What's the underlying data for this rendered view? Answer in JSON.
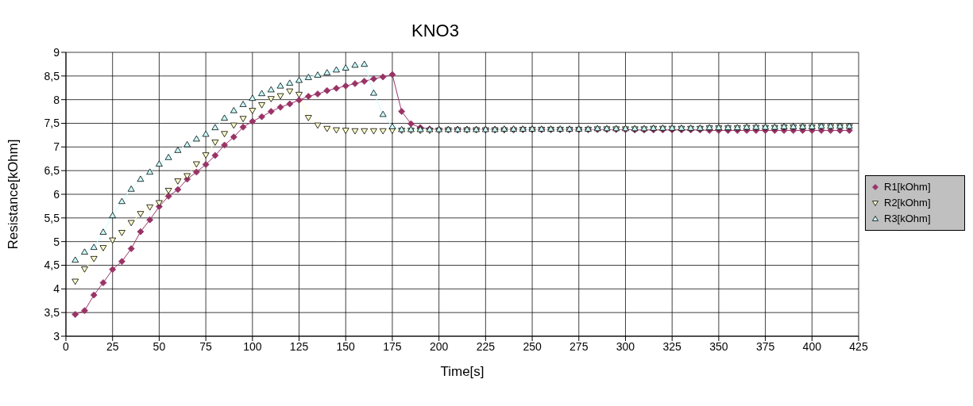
{
  "chart_data": {
    "type": "line",
    "title": "KNO3",
    "xlabel": "Time[s]",
    "ylabel": "Resistance[kOhm]",
    "x": [
      5,
      10,
      15,
      20,
      25,
      30,
      35,
      40,
      45,
      50,
      55,
      60,
      65,
      70,
      75,
      80,
      85,
      90,
      95,
      100,
      105,
      110,
      115,
      120,
      125,
      130,
      135,
      140,
      145,
      150,
      155,
      160,
      165,
      170,
      175,
      180,
      185,
      190,
      195,
      200,
      205,
      210,
      215,
      220,
      225,
      230,
      235,
      240,
      245,
      250,
      255,
      260,
      265,
      270,
      275,
      280,
      285,
      290,
      295,
      300,
      305,
      310,
      315,
      320,
      325,
      330,
      335,
      340,
      345,
      350,
      355,
      360,
      365,
      370,
      375,
      380,
      385,
      390,
      395,
      400,
      405,
      410,
      415,
      420
    ],
    "series": [
      {
        "name": "R1[kOhm]",
        "color": "#993366",
        "marker": "diamond",
        "values": [
          3.46,
          3.54,
          3.87,
          4.13,
          4.41,
          4.58,
          4.85,
          5.21,
          5.46,
          5.74,
          5.96,
          6.1,
          6.32,
          6.47,
          6.63,
          6.82,
          7.04,
          7.21,
          7.42,
          7.54,
          7.64,
          7.75,
          7.84,
          7.91,
          7.99,
          8.07,
          8.12,
          8.19,
          8.24,
          8.29,
          8.34,
          8.39,
          8.44,
          8.48,
          8.53,
          7.75,
          7.49,
          7.41,
          7.38,
          7.37,
          7.37,
          7.37,
          7.37,
          7.37,
          7.37,
          7.37,
          7.37,
          7.37,
          7.37,
          7.37,
          7.37,
          7.37,
          7.37,
          7.37,
          7.37,
          7.37,
          7.37,
          7.37,
          7.37,
          7.37,
          7.36,
          7.36,
          7.36,
          7.36,
          7.36,
          7.36,
          7.36,
          7.36,
          7.35,
          7.35,
          7.35,
          7.35,
          7.35,
          7.35,
          7.35,
          7.35,
          7.35,
          7.35,
          7.35,
          7.35,
          7.35,
          7.35,
          7.35,
          7.35
        ]
      },
      {
        "name": "R2[kOhm]",
        "color": "#ffffcc",
        "marker": "triangle-down",
        "values": [
          4.16,
          4.42,
          4.64,
          4.87,
          5.03,
          5.19,
          5.4,
          5.59,
          5.73,
          5.82,
          6.08,
          6.28,
          6.39,
          6.64,
          6.83,
          7.1,
          7.28,
          7.46,
          7.6,
          7.77,
          7.89,
          8.02,
          8.08,
          8.18,
          8.11,
          7.62,
          7.46,
          7.39,
          7.36,
          7.35,
          7.34,
          7.34,
          7.34,
          7.34,
          7.35,
          7.35,
          7.35,
          7.35,
          7.35,
          7.35,
          7.36,
          7.36,
          7.36,
          7.36,
          7.36,
          7.36,
          7.36,
          7.36,
          7.37,
          7.37,
          7.37,
          7.37,
          7.37,
          7.37,
          7.37,
          7.37,
          7.38,
          7.38,
          7.38,
          7.38,
          7.38,
          7.38,
          7.39,
          7.39,
          7.39,
          7.39,
          7.39,
          7.39,
          7.4,
          7.4,
          7.4,
          7.4,
          7.41,
          7.41,
          7.41,
          7.41,
          7.42,
          7.42,
          7.42,
          7.42,
          7.43,
          7.43,
          7.43,
          7.43
        ]
      },
      {
        "name": "R3[kOhm]",
        "color": "#ccffff",
        "marker": "triangle",
        "values": [
          4.61,
          4.78,
          4.88,
          5.2,
          5.55,
          5.85,
          6.11,
          6.32,
          6.47,
          6.64,
          6.78,
          6.93,
          7.05,
          7.17,
          7.27,
          7.41,
          7.61,
          7.77,
          7.9,
          8.03,
          8.13,
          8.21,
          8.29,
          8.35,
          8.41,
          8.47,
          8.52,
          8.57,
          8.63,
          8.67,
          8.73,
          8.75,
          8.14,
          7.69,
          7.43,
          7.37,
          7.37,
          7.37,
          7.37,
          7.37,
          7.37,
          7.37,
          7.37,
          7.37,
          7.37,
          7.37,
          7.38,
          7.38,
          7.38,
          7.38,
          7.38,
          7.38,
          7.38,
          7.38,
          7.38,
          7.38,
          7.39,
          7.39,
          7.39,
          7.39,
          7.39,
          7.39,
          7.4,
          7.4,
          7.4,
          7.4,
          7.4,
          7.4,
          7.41,
          7.41,
          7.41,
          7.41,
          7.42,
          7.42,
          7.42,
          7.42,
          7.43,
          7.43,
          7.43,
          7.43,
          7.44,
          7.44,
          7.44,
          7.44
        ]
      }
    ],
    "xlim": [
      0,
      425
    ],
    "xticks": [
      0,
      25,
      50,
      75,
      100,
      125,
      150,
      175,
      200,
      225,
      250,
      275,
      300,
      325,
      350,
      375,
      400,
      425
    ],
    "ylim": [
      3,
      9
    ],
    "yticks": [
      3,
      {
        "value": 3.5,
        "label": "3,5"
      },
      4,
      {
        "value": 4.5,
        "label": "4,5"
      },
      5,
      {
        "value": 5.5,
        "label": "5,5"
      },
      6,
      {
        "value": 6.5,
        "label": "6,5"
      },
      7,
      {
        "value": 7.5,
        "label": "7,5"
      },
      8,
      {
        "value": 8.5,
        "label": "8,5"
      },
      9
    ],
    "grid": true,
    "legend": "right",
    "line_style": "solid"
  }
}
